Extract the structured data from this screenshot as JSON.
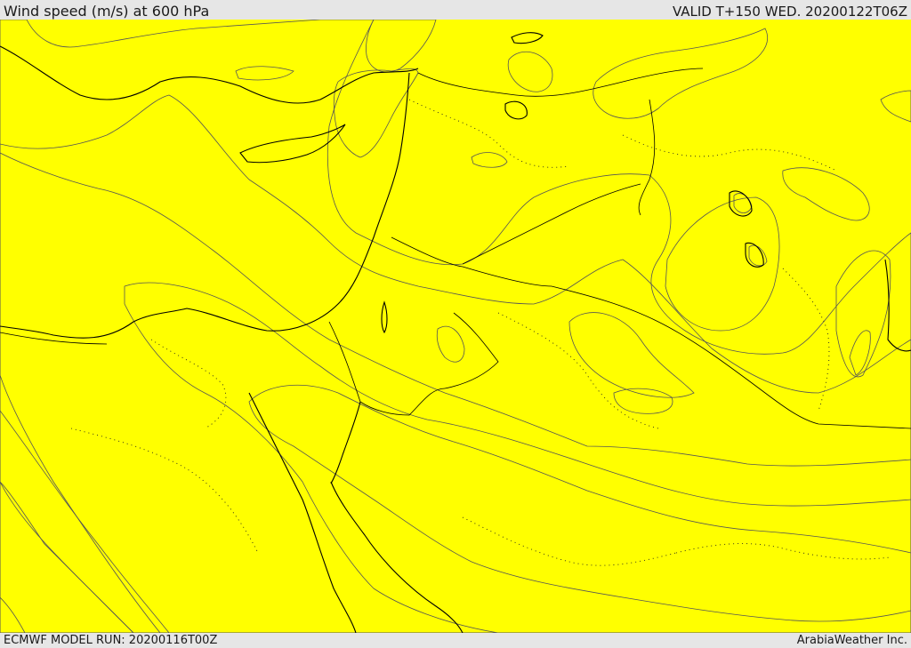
{
  "header": {
    "title": "Wind speed (m/s) at 600 hPa",
    "valid": "VALID T+150 WED. 20200122T06Z"
  },
  "footer": {
    "model_run": "ECMWF MODEL RUN: 20200116T00Z",
    "credit": "ArabiaWeather Inc."
  },
  "map": {
    "field": "wind speed",
    "colors": {
      "white": "#ffffff",
      "peach": "#ffdea8",
      "yellow": "#ffff00",
      "gold": "#ffd700",
      "light_orange": "#ffc400",
      "orange": "#ffa500",
      "dark_orange": "#ff8000",
      "red_orange": "#ff6600"
    }
  }
}
